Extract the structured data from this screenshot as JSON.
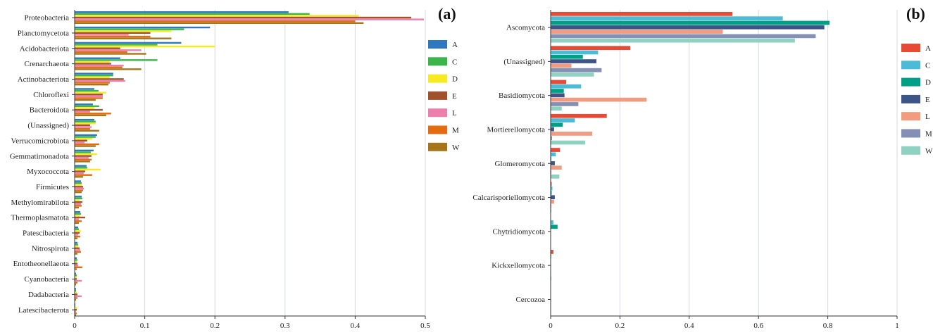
{
  "chart_data": [
    {
      "type": "bar",
      "orientation": "horizontal",
      "panel_label": "(a)",
      "title": "",
      "xlabel": "",
      "ylabel": "",
      "xlim": [
        0,
        0.5
      ],
      "xticks": [
        "0",
        "0.1",
        "0.2",
        "0.3",
        "0.4",
        "0.5"
      ],
      "grid": true,
      "legend_position": "right",
      "categories": [
        "Proteobacteria",
        "Planctomycetota",
        "Acidobacteriota",
        "Crenarchaeota",
        "Actinobacteriota",
        "Chloroflexi",
        "Bacteroidota",
        "(Unassigned)",
        "Verrucomicrobiota",
        "Gemmatimonadota",
        "Myxococcota",
        "Firmicutes",
        "Methylomirabilota",
        "Thermoplasmatota",
        "Patescibacteria",
        "Nitrospirota",
        "Entotheonellaeota",
        "Cyanobacteria",
        "Dadabacteria",
        "Latescibacterota"
      ],
      "series": [
        {
          "name": "A",
          "color": "#2e78bf",
          "values": [
            0.305,
            0.193,
            0.152,
            0.065,
            0.055,
            0.028,
            0.026,
            0.028,
            0.032,
            0.027,
            0.017,
            0.009,
            0.01,
            0.008,
            0.005,
            0.004,
            0.003,
            0.002,
            0.002,
            0.001
          ]
        },
        {
          "name": "C",
          "color": "#39b54a",
          "values": [
            0.335,
            0.156,
            0.118,
            0.118,
            0.055,
            0.034,
            0.035,
            0.03,
            0.03,
            0.023,
            0.018,
            0.01,
            0.011,
            0.009,
            0.006,
            0.005,
            0.004,
            0.003,
            0.002,
            0.001
          ]
        },
        {
          "name": "D",
          "color": "#f7ea20",
          "values": [
            0.405,
            0.138,
            0.2,
            0.05,
            0.05,
            0.045,
            0.028,
            0.03,
            0.025,
            0.032,
            0.037,
            0.01,
            0.007,
            0.007,
            0.009,
            0.005,
            0.003,
            0.003,
            0.003,
            0.004
          ]
        },
        {
          "name": "E",
          "color": "#a0522d",
          "values": [
            0.48,
            0.108,
            0.065,
            0.052,
            0.07,
            0.04,
            0.04,
            0.022,
            0.018,
            0.024,
            0.015,
            0.012,
            0.011,
            0.015,
            0.007,
            0.007,
            0.004,
            0.003,
            0.004,
            0.003
          ]
        },
        {
          "name": "L",
          "color": "#ec7fae",
          "values": [
            0.498,
            0.077,
            0.095,
            0.07,
            0.072,
            0.04,
            0.022,
            0.024,
            0.014,
            0.02,
            0.013,
            0.013,
            0.009,
            0.006,
            0.005,
            0.008,
            0.005,
            0.01,
            0.01,
            0.002
          ]
        },
        {
          "name": "M",
          "color": "#e36b12",
          "values": [
            0.4,
            0.108,
            0.075,
            0.068,
            0.05,
            0.04,
            0.052,
            0.022,
            0.035,
            0.024,
            0.025,
            0.012,
            0.01,
            0.01,
            0.008,
            0.009,
            0.011,
            0.004,
            0.004,
            0.003
          ]
        },
        {
          "name": "W",
          "color": "#a77519",
          "values": [
            0.412,
            0.138,
            0.102,
            0.095,
            0.048,
            0.03,
            0.045,
            0.035,
            0.03,
            0.022,
            0.012,
            0.01,
            0.006,
            0.006,
            0.004,
            0.004,
            0.003,
            0.002,
            0.002,
            0.002
          ]
        }
      ]
    },
    {
      "type": "bar",
      "orientation": "horizontal",
      "panel_label": "(b)",
      "title": "",
      "xlabel": "",
      "ylabel": "",
      "xlim": [
        0,
        1
      ],
      "xticks": [
        "0",
        "0.2",
        "0.4",
        "0.6",
        "0.8",
        "1"
      ],
      "grid": true,
      "legend_position": "right",
      "categories": [
        "Ascomycota",
        "(Unassigned)",
        "Basidiomycota",
        "Mortierellomycota",
        "Glomeromycota",
        "Calcarisporiellomycota",
        "Chytridiomycota",
        "Kickxellomycota",
        "Cercozoa"
      ],
      "series": [
        {
          "name": "A",
          "color": "#e64b35",
          "values": [
            0.525,
            0.23,
            0.045,
            0.162,
            0.027,
            0.003,
            0.001,
            0.008,
            0.0
          ]
        },
        {
          "name": "C",
          "color": "#4dbbd5",
          "values": [
            0.67,
            0.137,
            0.088,
            0.07,
            0.015,
            0.005,
            0.008,
            0.002,
            0.0
          ]
        },
        {
          "name": "D",
          "color": "#00a087",
          "values": [
            0.805,
            0.093,
            0.038,
            0.035,
            0.002,
            0.003,
            0.02,
            0.001,
            0.0
          ]
        },
        {
          "name": "E",
          "color": "#3c5488",
          "values": [
            0.79,
            0.132,
            0.04,
            0.01,
            0.012,
            0.012,
            0.001,
            0.001,
            0.0
          ]
        },
        {
          "name": "L",
          "color": "#f39b7f",
          "values": [
            0.497,
            0.06,
            0.277,
            0.12,
            0.032,
            0.01,
            0.001,
            0.001,
            0.0
          ]
        },
        {
          "name": "M",
          "color": "#8491b4",
          "values": [
            0.765,
            0.147,
            0.08,
            0.004,
            0.002,
            0.002,
            0.001,
            0.001,
            0.0
          ]
        },
        {
          "name": "W",
          "color": "#91d1c2",
          "values": [
            0.705,
            0.125,
            0.032,
            0.1,
            0.025,
            0.002,
            0.001,
            0.002,
            0.0
          ]
        }
      ]
    }
  ]
}
